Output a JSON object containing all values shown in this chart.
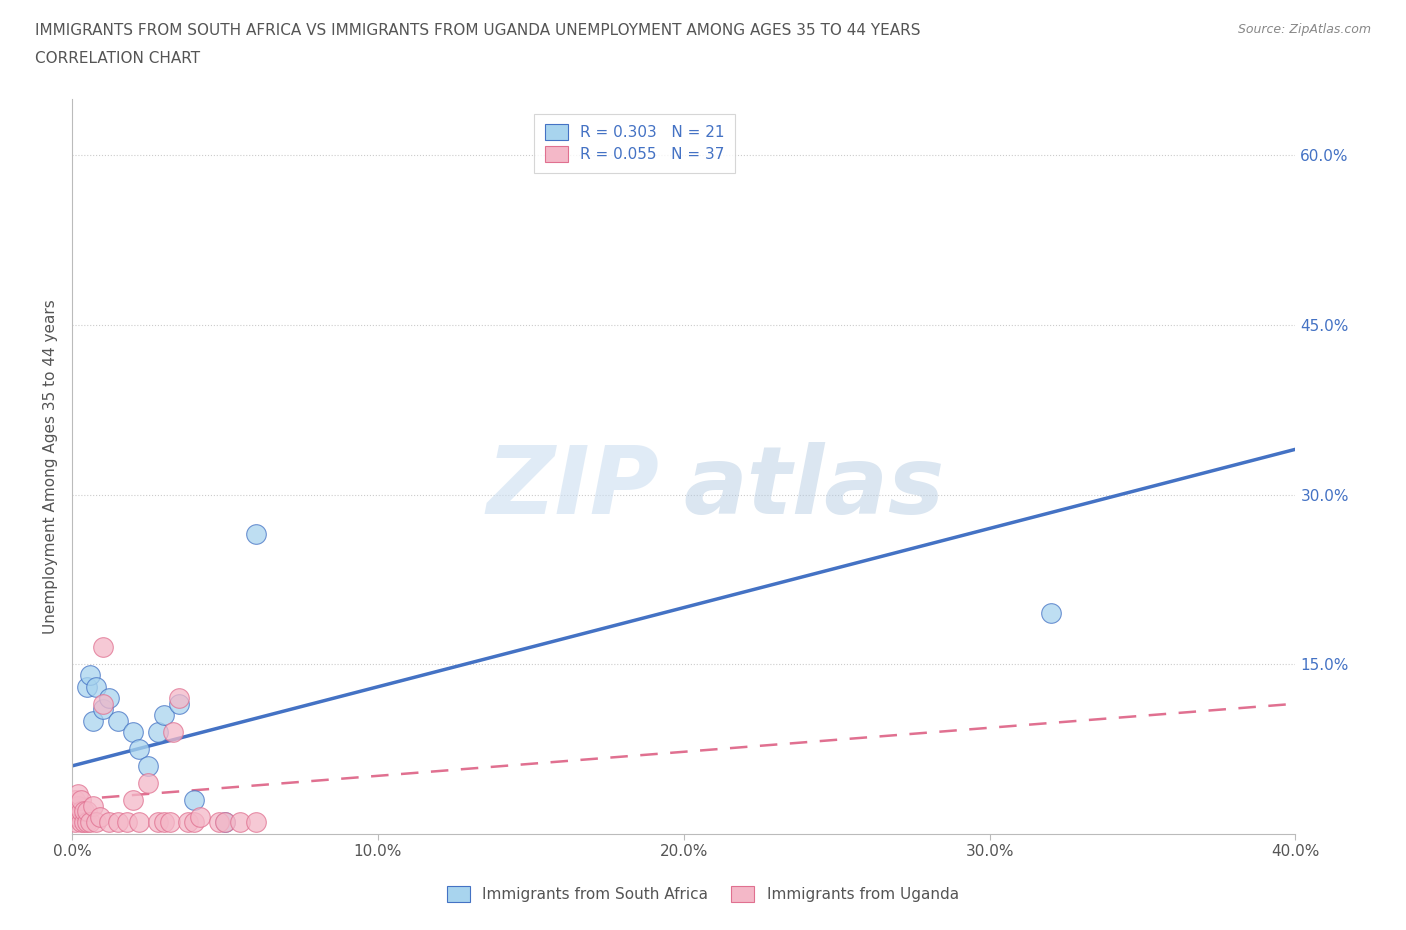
{
  "title_line1": "IMMIGRANTS FROM SOUTH AFRICA VS IMMIGRANTS FROM UGANDA UNEMPLOYMENT AMONG AGES 35 TO 44 YEARS",
  "title_line2": "CORRELATION CHART",
  "source": "Source: ZipAtlas.com",
  "ylabel": "Unemployment Among Ages 35 to 44 years",
  "xlim": [
    0.0,
    0.4
  ],
  "ylim": [
    0.0,
    0.65
  ],
  "xticks": [
    0.0,
    0.1,
    0.2,
    0.3,
    0.4
  ],
  "xtick_labels": [
    "0.0%",
    "10.0%",
    "20.0%",
    "30.0%",
    "40.0%"
  ],
  "ytick_labels_right": [
    "15.0%",
    "30.0%",
    "45.0%",
    "60.0%"
  ],
  "ytick_vals_right": [
    0.15,
    0.3,
    0.45,
    0.6
  ],
  "legend_R1": "R = 0.303",
  "legend_N1": "N = 21",
  "legend_R2": "R = 0.055",
  "legend_N2": "N = 37",
  "color_sa": "#A8D4EE",
  "color_ug": "#F4B8C8",
  "color_sa_line": "#4472C4",
  "color_ug_line": "#E07090",
  "watermark_zip": "ZIP",
  "watermark_atlas": "atlas",
  "sa_points_x": [
    0.001,
    0.002,
    0.003,
    0.004,
    0.005,
    0.006,
    0.007,
    0.008,
    0.01,
    0.012,
    0.015,
    0.02,
    0.022,
    0.025,
    0.028,
    0.03,
    0.035,
    0.04,
    0.05,
    0.06,
    0.32
  ],
  "sa_points_y": [
    0.02,
    0.02,
    0.015,
    0.015,
    0.13,
    0.14,
    0.1,
    0.13,
    0.11,
    0.12,
    0.1,
    0.09,
    0.075,
    0.06,
    0.09,
    0.105,
    0.115,
    0.03,
    0.01,
    0.265,
    0.195
  ],
  "ug_points_x": [
    0.001,
    0.001,
    0.001,
    0.002,
    0.002,
    0.002,
    0.003,
    0.003,
    0.003,
    0.004,
    0.004,
    0.005,
    0.005,
    0.006,
    0.007,
    0.008,
    0.009,
    0.01,
    0.01,
    0.012,
    0.015,
    0.018,
    0.02,
    0.022,
    0.025,
    0.028,
    0.03,
    0.032,
    0.033,
    0.035,
    0.038,
    0.04,
    0.042,
    0.048,
    0.05,
    0.055,
    0.06
  ],
  "ug_points_y": [
    0.01,
    0.02,
    0.03,
    0.015,
    0.025,
    0.035,
    0.01,
    0.02,
    0.03,
    0.01,
    0.02,
    0.01,
    0.02,
    0.01,
    0.025,
    0.01,
    0.015,
    0.165,
    0.115,
    0.01,
    0.01,
    0.01,
    0.03,
    0.01,
    0.045,
    0.01,
    0.01,
    0.01,
    0.09,
    0.12,
    0.01,
    0.01,
    0.015,
    0.01,
    0.01,
    0.01,
    0.01
  ],
  "sa_line_x": [
    0.0,
    0.4
  ],
  "sa_line_y": [
    0.06,
    0.34
  ],
  "ug_line_x": [
    0.0,
    0.4
  ],
  "ug_line_y": [
    0.03,
    0.115
  ],
  "gridline_color": "#CCCCCC",
  "background_color": "#FFFFFF",
  "title_color": "#555555",
  "axis_label_color": "#555555",
  "tick_label_color": "#555555"
}
